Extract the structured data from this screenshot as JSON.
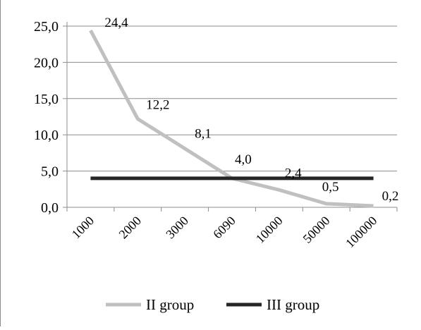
{
  "chart_data": {
    "type": "line",
    "categories": [
      "1000",
      "2000",
      "3000",
      "6090",
      "10000",
      "50000",
      "100000"
    ],
    "series": [
      {
        "name": "II group",
        "color": "#c0c0c0",
        "values": [
          24.4,
          12.2,
          8.1,
          4.0,
          2.4,
          0.5,
          0.2
        ],
        "data_labels": [
          "24,4",
          "12,2",
          "8,1",
          "4,0",
          "2,4",
          "0,5",
          "0,2"
        ]
      },
      {
        "name": "III group",
        "color": "#262626",
        "values": [
          4.0,
          4.0,
          4.0,
          4.0,
          4.0,
          4.0,
          4.0
        ]
      }
    ],
    "ylim": [
      0,
      25
    ],
    "y_ticks": [
      0,
      5,
      10,
      15,
      20,
      25
    ],
    "y_tick_labels": [
      "0,0",
      "5,0",
      "10,0",
      "15,0",
      "20,0",
      "25,0"
    ],
    "grid": "horizontal",
    "legend_position": "bottom",
    "title": "",
    "xlabel": "",
    "ylabel": ""
  }
}
